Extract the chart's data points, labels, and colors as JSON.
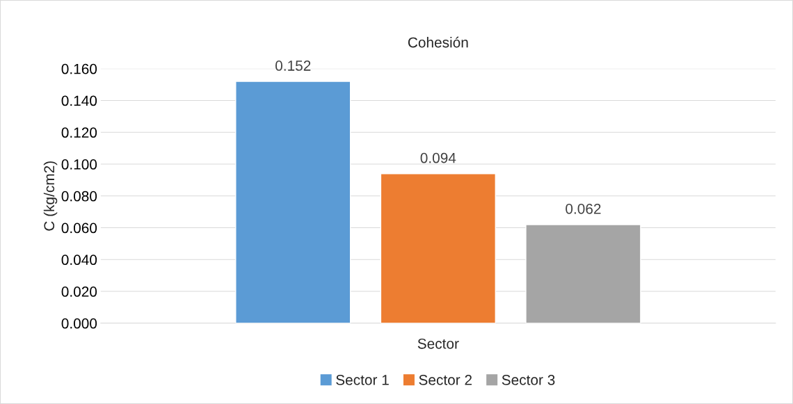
{
  "chart_data": {
    "type": "bar",
    "title": "Cohesión",
    "xlabel": "Sector",
    "ylabel": "C (kg/cm2)",
    "categories": [
      null
    ],
    "series": [
      {
        "name": "Sector 1",
        "color": "#5b9bd5",
        "values": [
          0.152
        ]
      },
      {
        "name": "Sector 2",
        "color": "#ed7d31",
        "values": [
          0.094
        ]
      },
      {
        "name": "Sector 3",
        "color": "#a5a5a5",
        "values": [
          0.062
        ]
      }
    ],
    "ylim": [
      0,
      0.16
    ],
    "yticks": [
      {
        "value": 0,
        "label": "0.000"
      },
      {
        "value": 0.02,
        "label": "0.020"
      },
      {
        "value": 0.04,
        "label": "0.040"
      },
      {
        "value": 0.06,
        "label": "0.060"
      },
      {
        "value": 0.08,
        "label": "0.080"
      },
      {
        "value": 0.1,
        "label": "0.100"
      },
      {
        "value": 0.12,
        "label": "0.120"
      },
      {
        "value": 0.14,
        "label": "0.140"
      },
      {
        "value": 0.16,
        "label": "0.160"
      }
    ],
    "grid": "y",
    "legend": "bottom",
    "data_labels": true
  }
}
